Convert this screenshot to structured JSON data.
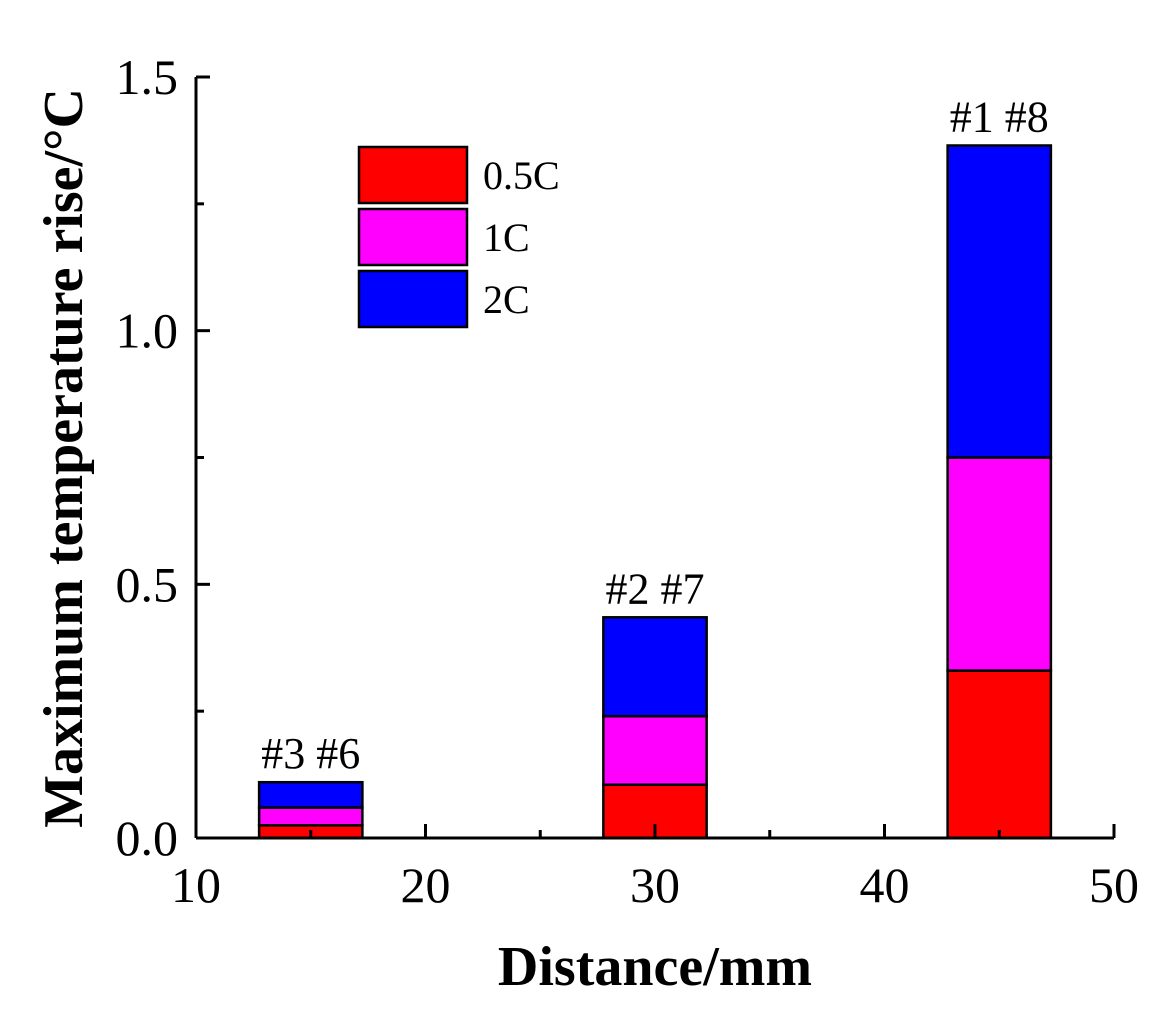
{
  "chart_data": {
    "type": "bar",
    "stacked": true,
    "xlabel": "Distance/mm",
    "ylabel": "Maximum temperature rise/°C",
    "xlim": [
      10,
      50
    ],
    "ylim": [
      0,
      1.5
    ],
    "x_ticks": [
      "10",
      "20",
      "30",
      "40",
      "50"
    ],
    "y_ticks": [
      "0.0",
      "0.5",
      "1.0",
      "1.5"
    ],
    "x": [
      15,
      30,
      45
    ],
    "bar_width": 4.5,
    "group_labels": [
      "#3 #6",
      "#2 #7",
      "#1 #8"
    ],
    "series": [
      {
        "name": "0.5C",
        "color": "#ff0000",
        "values": [
          0.025,
          0.105,
          0.33
        ]
      },
      {
        "name": "1C",
        "color": "#ff00ff",
        "values": [
          0.035,
          0.135,
          0.42
        ]
      },
      {
        "name": "2C",
        "color": "#0000ff",
        "values": [
          0.05,
          0.195,
          0.615
        ]
      }
    ],
    "legend_position": "top-left"
  }
}
